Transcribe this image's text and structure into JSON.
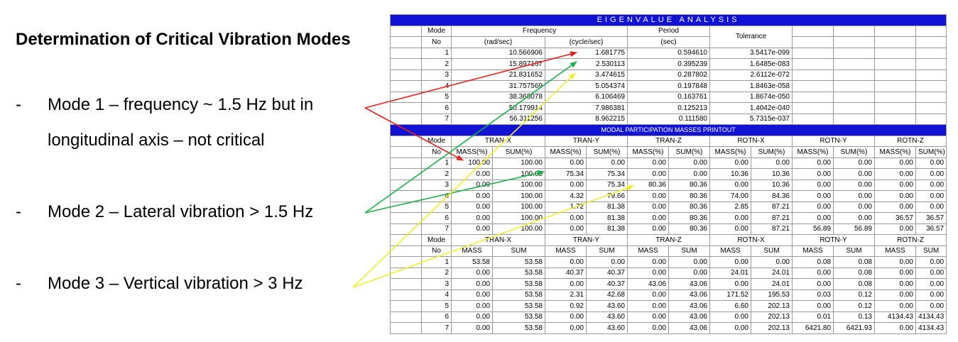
{
  "slide": {
    "title": "Determination of Critical Vibration Modes",
    "bullets": [
      {
        "dash": "-",
        "text": "Mode 1 – frequency ~ 1.5 Hz but in longitudinal axis – not critical"
      },
      {
        "dash": "-",
        "text": "Mode 2 – Lateral vibration > 1.5 Hz"
      },
      {
        "dash": "-",
        "text": "Mode 3 – Vertical vibration > 3 Hz"
      }
    ]
  },
  "eigen": {
    "title": "EIGENVALUE   ANALYSIS",
    "hdr_mode_1": "Mode",
    "hdr_mode_2": "No",
    "hdr_frequency": "Frequency",
    "hdr_rad": "(rad/sec)",
    "hdr_cycle": "(cycle/sec)",
    "hdr_period": "Period",
    "hdr_sec": "(sec)",
    "hdr_tolerance": "Tolerance",
    "rows": [
      [
        "1",
        "10.566906",
        "1.681775",
        "0.594610",
        "3.5417e-099"
      ],
      [
        "2",
        "15.897167",
        "2.530113",
        "0.395239",
        "1.6485e-083"
      ],
      [
        "3",
        "21.831652",
        "3.474615",
        "0.287802",
        "2.6112e-072"
      ],
      [
        "4",
        "31.757569",
        "5.054374",
        "0.197848",
        "1.8463e-058"
      ],
      [
        "5",
        "38.368078",
        "6.106469",
        "0.163761",
        "1.8674e-050"
      ],
      [
        "6",
        "50.179914",
        "7.986381",
        "0.125213",
        "1.4042e-040"
      ],
      [
        "7",
        "56.311256",
        "8.962215",
        "0.111580",
        "5.7315e-037"
      ]
    ]
  },
  "modal": {
    "title": "MODAL PARTICIPATION MASSES PRINTOUT",
    "hdr_mode_1": "Mode",
    "hdr_mode_2": "No",
    "groups": [
      "TRAN-X",
      "TRAN-Y",
      "TRAN-Z",
      "ROTN-X",
      "ROTN-Y",
      "ROTN-Z"
    ],
    "sub": [
      "MASS(%)",
      "SUM(%)"
    ],
    "rows": [
      [
        "1",
        "100.00",
        "100.00",
        "0.00",
        "0.00",
        "0.00",
        "0.00",
        "0.00",
        "0.00",
        "0.00",
        "0.00",
        "0.00",
        "0.00"
      ],
      [
        "2",
        "0.00",
        "100.00",
        "75.34",
        "75.34",
        "0.00",
        "0.00",
        "10.36",
        "10.36",
        "0.00",
        "0.00",
        "0.00",
        "0.00"
      ],
      [
        "3",
        "0.00",
        "100.00",
        "0.00",
        "75.34",
        "80.36",
        "80.36",
        "0.00",
        "10.36",
        "0.00",
        "0.00",
        "0.00",
        "0.00"
      ],
      [
        "4",
        "0.00",
        "100.00",
        "4.32",
        "79.66",
        "0.00",
        "80.36",
        "74.00",
        "84.36",
        "0.00",
        "0.00",
        "0.00",
        "0.00"
      ],
      [
        "5",
        "0.00",
        "100.00",
        "1.72",
        "81.38",
        "0.00",
        "80.36",
        "2.85",
        "87.21",
        "0.00",
        "0.00",
        "0.00",
        "0.00"
      ],
      [
        "6",
        "0.00",
        "100.00",
        "0.00",
        "81.38",
        "0.00",
        "80.36",
        "0.00",
        "87.21",
        "0.00",
        "0.00",
        "36.57",
        "36.57"
      ],
      [
        "7",
        "0.00",
        "100.00",
        "0.00",
        "81.38",
        "0.00",
        "80.36",
        "0.00",
        "87.21",
        "56.89",
        "56.89",
        "0.00",
        "36.57"
      ]
    ]
  },
  "mass": {
    "hdr_mode_1": "Mode",
    "hdr_mode_2": "No",
    "groups": [
      "TRAN-X",
      "TRAN-Y",
      "TRAN-Z",
      "ROTN-X",
      "ROTN-Y",
      "ROTN-Z"
    ],
    "sub": [
      "MASS",
      "SUM"
    ],
    "rows": [
      [
        "1",
        "53.58",
        "53.58",
        "0.00",
        "0.00",
        "0.00",
        "0.00",
        "0.00",
        "0.00",
        "0.08",
        "0.08",
        "0.00",
        "0.00"
      ],
      [
        "2",
        "0.00",
        "53.58",
        "40.37",
        "40.37",
        "0.00",
        "0.00",
        "24.01",
        "24.01",
        "0.00",
        "0.08",
        "0.00",
        "0.00"
      ],
      [
        "3",
        "0.00",
        "53.58",
        "0.00",
        "40.37",
        "43.06",
        "43.06",
        "0.00",
        "24.01",
        "0.00",
        "0.08",
        "0.00",
        "0.00"
      ],
      [
        "4",
        "0.00",
        "53.58",
        "2.31",
        "42.68",
        "0.00",
        "43.06",
        "171.52",
        "195.53",
        "0.03",
        "0.12",
        "0.00",
        "0.00"
      ],
      [
        "5",
        "0.00",
        "53.58",
        "0.92",
        "43.60",
        "0.00",
        "43.06",
        "6.60",
        "202.13",
        "0.00",
        "0.12",
        "0.00",
        "0.00"
      ],
      [
        "6",
        "0.00",
        "53.58",
        "0.00",
        "43.60",
        "0.00",
        "43.06",
        "0.00",
        "202.13",
        "0.01",
        "0.13",
        "4134.43",
        "4134.43"
      ],
      [
        "7",
        "0.00",
        "53.58",
        "0.00",
        "43.60",
        "0.00",
        "43.06",
        "0.00",
        "202.13",
        "6421.80",
        "6421.93",
        "0.00",
        "4134.43"
      ]
    ]
  },
  "colors": {
    "header_bar": "#1212d4",
    "arrow_mode1": "#e8201e",
    "arrow_mode2": "#1bb04a",
    "arrow_mode3": "#f2ee2a"
  }
}
